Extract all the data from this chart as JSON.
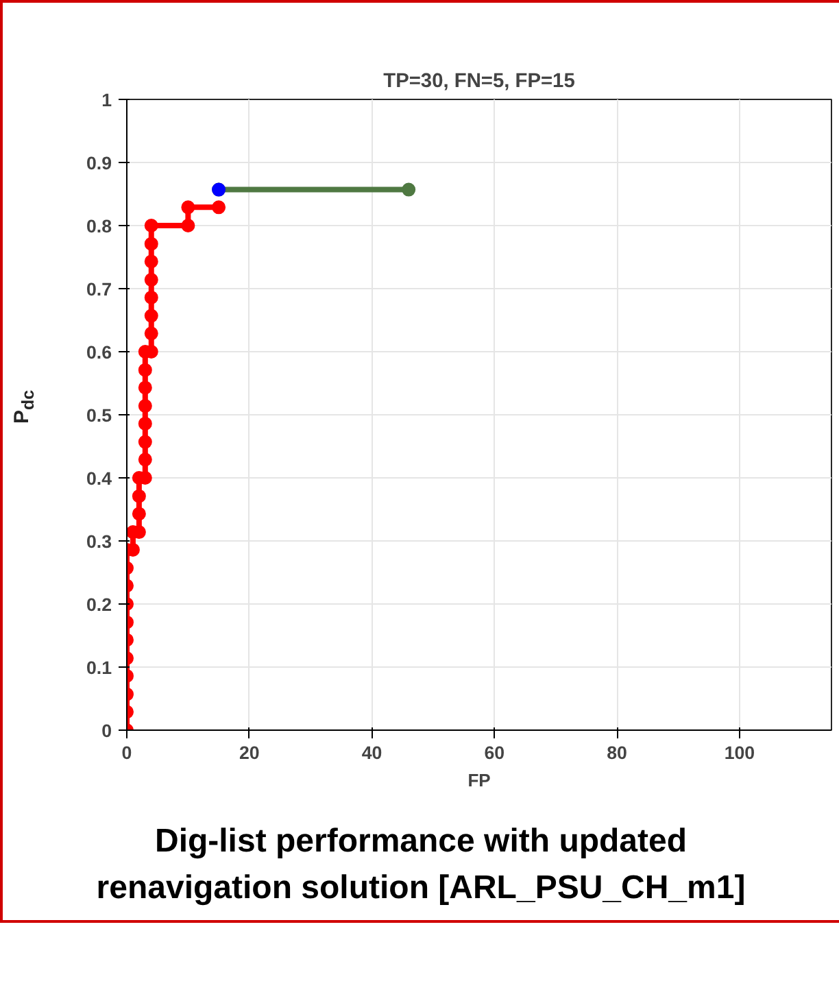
{
  "chart_data": {
    "type": "line",
    "title": "TP=30, FN=5, FP=15",
    "xlabel": "FP",
    "ylabel": "P$_{dc}$",
    "annotations": [
      "Dig-list performance with updated renavigation solution [ARL_PSU_CH_m1]"
    ],
    "xlim": [
      0,
      115
    ],
    "xticks": [
      0,
      20,
      40,
      60,
      80,
      100
    ],
    "ylim": [
      0,
      1
    ],
    "yticks": [
      0,
      0.1,
      0.2,
      0.3,
      0.4,
      0.5,
      0.6,
      0.7,
      0.8,
      0.9,
      1
    ],
    "grid": true,
    "marker": "circle",
    "line_style": "solid",
    "series": [
      {
        "color": "#ff0000",
        "x": [
          0,
          0,
          0,
          0,
          0,
          0,
          0,
          0,
          0,
          0,
          0,
          1,
          1,
          2,
          2,
          2,
          2,
          3,
          3,
          3,
          3,
          3,
          3,
          3,
          3,
          4,
          4,
          4,
          4,
          4,
          4,
          4,
          4,
          10,
          10,
          15
        ],
        "values": [
          0,
          0.029,
          0.057,
          0.086,
          0.114,
          0.143,
          0.171,
          0.2,
          0.229,
          0.257,
          0.286,
          0.286,
          0.314,
          0.314,
          0.343,
          0.371,
          0.4,
          0.4,
          0.429,
          0.457,
          0.486,
          0.514,
          0.543,
          0.571,
          0.6,
          0.6,
          0.629,
          0.657,
          0.686,
          0.714,
          0.743,
          0.771,
          0.8,
          0.8,
          0.829,
          0.829
        ]
      },
      {
        "color": "#4f7942",
        "x": [
          15,
          46
        ],
        "values": [
          0.857,
          0.857
        ]
      },
      {
        "type": "scatter",
        "color": "#0000ff",
        "x": [
          15
        ],
        "values": [
          0.857
        ]
      }
    ]
  }
}
